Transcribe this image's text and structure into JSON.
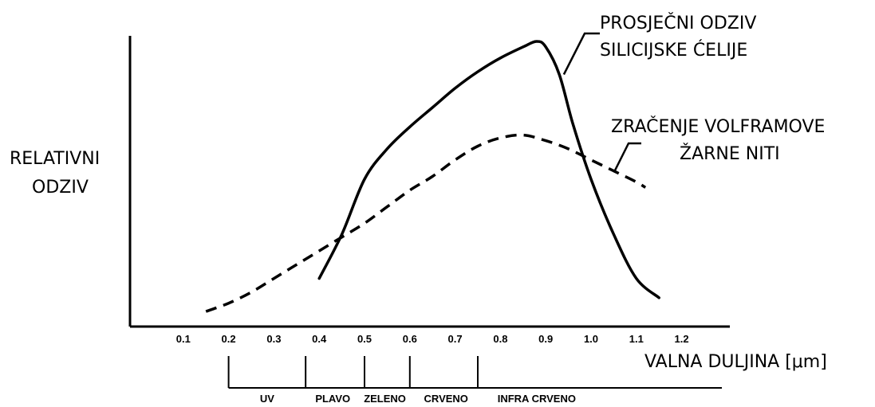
{
  "chart_data": {
    "type": "line",
    "xlabel": "VALNA DULJINA [μm]",
    "ylabel_lines": [
      "RELATIVNI",
      "ODZIV"
    ],
    "xlim": [
      0.0,
      1.3
    ],
    "ylim": [
      0,
      100
    ],
    "x_ticks": [
      "0.1",
      "0.2",
      "0.3",
      "0.4",
      "0.5",
      "0.6",
      "0.7",
      "0.8",
      "0.9",
      "1.0",
      "1.1",
      "1.2"
    ],
    "series": [
      {
        "name_lines": [
          "PROSJEČNI ODZIV",
          "SILICIJSKE ĆELIJE"
        ],
        "style": "solid",
        "x": [
          0.4,
          0.45,
          0.5,
          0.55,
          0.6,
          0.65,
          0.7,
          0.75,
          0.8,
          0.85,
          0.88,
          0.9,
          0.93,
          0.96,
          1.0,
          1.05,
          1.1,
          1.15
        ],
        "y": [
          14,
          30,
          50,
          61,
          69,
          76,
          83,
          89,
          94,
          98,
          100,
          98,
          88,
          70,
          50,
          30,
          14,
          7
        ]
      },
      {
        "name_lines": [
          "ZRAČENJE VOLFRAMOVE",
          "ŽARNE NITI"
        ],
        "style": "dashed",
        "x": [
          0.15,
          0.2,
          0.25,
          0.3,
          0.35,
          0.4,
          0.45,
          0.5,
          0.55,
          0.6,
          0.65,
          0.7,
          0.75,
          0.8,
          0.85,
          0.9,
          0.95,
          1.0,
          1.05,
          1.1,
          1.12
        ],
        "y": [
          2,
          5,
          9,
          14,
          19,
          24,
          29,
          34,
          40,
          46,
          51,
          57,
          62,
          65,
          66,
          64,
          61,
          57,
          53,
          49,
          47
        ]
      }
    ],
    "bands": {
      "dividers": [
        0.2,
        0.37,
        0.5,
        0.6,
        0.75
      ],
      "labels": [
        {
          "text": "UV",
          "x": 0.285
        },
        {
          "text": "PLAVO",
          "x": 0.43
        },
        {
          "text": "ZELENO",
          "x": 0.545
        },
        {
          "text": "CRVENO",
          "x": 0.68
        },
        {
          "text": "INFRA CRVENO",
          "x": 0.88
        }
      ]
    }
  }
}
